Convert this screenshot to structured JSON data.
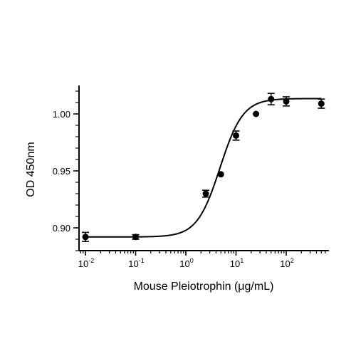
{
  "chart_data": {
    "type": "scatter",
    "xlabel": "Mouse Pleiotrophin (μg/mL)",
    "ylabel": "OD 450nm",
    "xscale": "log",
    "xlim": [
      0.008,
      600
    ],
    "ylim": [
      0.88,
      1.025
    ],
    "grid": false,
    "legend": "none",
    "x_ticks": [
      {
        "value": 0.01,
        "base": "10",
        "exp": "-2"
      },
      {
        "value": 0.1,
        "base": "10",
        "exp": "-1"
      },
      {
        "value": 1,
        "base": "10",
        "exp": "0"
      },
      {
        "value": 10,
        "base": "10",
        "exp": "1"
      },
      {
        "value": 100,
        "base": "10",
        "exp": "2"
      }
    ],
    "y_ticks": [
      {
        "value": 0.9,
        "label": "0.90"
      },
      {
        "value": 0.95,
        "label": "0.95"
      },
      {
        "value": 1.0,
        "label": "1.00"
      }
    ],
    "points": [
      {
        "x": 0.01,
        "y": 0.892,
        "err": 0.004
      },
      {
        "x": 0.1,
        "y": 0.892,
        "err": 0.002
      },
      {
        "x": 2.5,
        "y": 0.93,
        "err": 0.003
      },
      {
        "x": 5,
        "y": 0.947,
        "err": 0.0
      },
      {
        "x": 10,
        "y": 0.981,
        "err": 0.004
      },
      {
        "x": 25,
        "y": 1.0,
        "err": 0.0
      },
      {
        "x": 50,
        "y": 1.013,
        "err": 0.005
      },
      {
        "x": 100,
        "y": 1.011,
        "err": 0.004
      },
      {
        "x": 500,
        "y": 1.009,
        "err": 0.004
      }
    ],
    "fit": {
      "model": "4PL",
      "bottom": 0.892,
      "top": 1.0135,
      "ec50": 4.8,
      "hill": 1.9,
      "x_range": [
        0.01,
        500
      ]
    }
  }
}
